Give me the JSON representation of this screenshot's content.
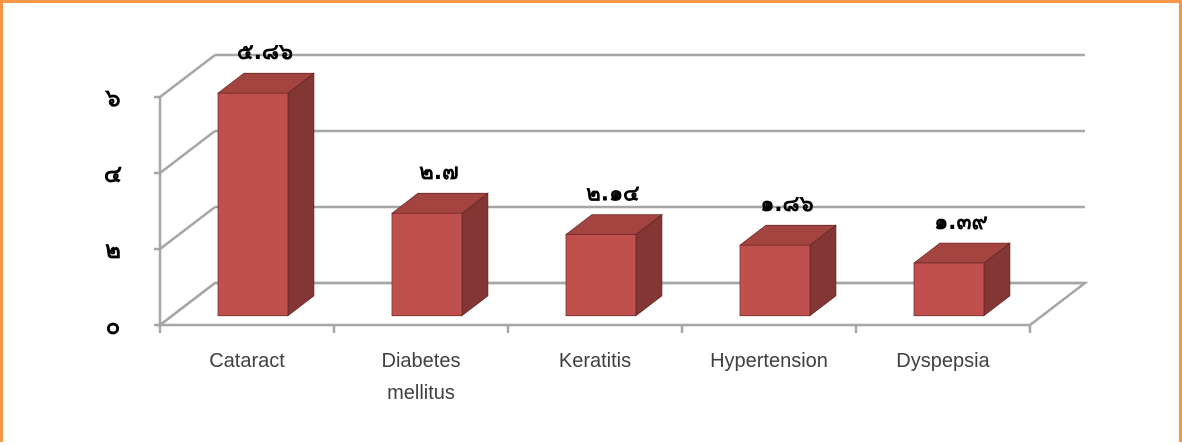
{
  "chart_data": {
    "type": "bar3d",
    "categories": [
      "Cataract",
      "Diabetes mellitus",
      "Keratitis",
      "Hypertension",
      "Dyspepsia"
    ],
    "values": [
      5.86,
      2.7,
      2.14,
      1.86,
      1.39
    ],
    "value_labels": [
      "๕.๘๖",
      "๒.๗",
      "๒.๑๔",
      "๑.๘๖",
      "๑.๓๙"
    ],
    "color": "#c0504d",
    "ylim": [
      0,
      6
    ],
    "yticks": [
      {
        "value": 0,
        "label": "๐"
      },
      {
        "value": 2,
        "label": "๒"
      },
      {
        "value": 4,
        "label": "๔"
      },
      {
        "value": 6,
        "label": "๖"
      }
    ],
    "grid": true
  }
}
